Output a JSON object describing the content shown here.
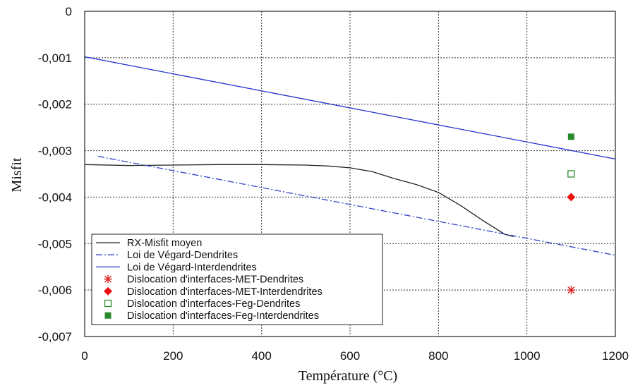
{
  "chart_data": {
    "type": "line",
    "title": "",
    "xlabel": "Température (°C)",
    "ylabel": "Misfit",
    "xlim": [
      0,
      1200
    ],
    "ylim": [
      -0.007,
      0
    ],
    "grid": {
      "x": true,
      "y": true,
      "style": "dotted"
    },
    "xticks": [
      0,
      200,
      400,
      600,
      800,
      1000,
      1200
    ],
    "xtick_labels": [
      "0",
      "200",
      "400",
      "600",
      "800",
      "1000",
      "1200"
    ],
    "yticks": [
      0,
      -0.001,
      -0.002,
      -0.003,
      -0.004,
      -0.005,
      -0.006,
      -0.007
    ],
    "ytick_labels": [
      "0",
      "-0,001",
      "-0,002",
      "-0,003",
      "-0,004",
      "-0,005",
      "-0,006",
      "-0,007"
    ],
    "legend_position": "bottom-left",
    "series": [
      {
        "name": "RX-Misfit moyen",
        "kind": "line",
        "color": "#222222",
        "dash": "solid",
        "x": [
          0,
          100,
          200,
          300,
          400,
          500,
          550,
          600,
          650,
          700,
          750,
          800,
          850,
          900,
          950,
          970
        ],
        "y": [
          -0.0033,
          -0.00332,
          -0.00331,
          -0.0033,
          -0.0033,
          -0.00331,
          -0.00333,
          -0.00337,
          -0.00345,
          -0.0036,
          -0.00373,
          -0.0039,
          -0.00418,
          -0.0045,
          -0.0048,
          -0.00485
        ]
      },
      {
        "name": "Loi de Végard-Dendrites",
        "kind": "line",
        "color": "#3344cc",
        "dash": "dashdot",
        "x": [
          30,
          1200
        ],
        "y": [
          -0.00312,
          -0.00525
        ]
      },
      {
        "name": "Loi de Végard-Interdendrites",
        "kind": "line",
        "color": "#2233cc",
        "dash": "solid",
        "x": [
          0,
          1200
        ],
        "y": [
          -0.00098,
          -0.00318
        ]
      },
      {
        "name": "Dislocation d'interfaces-MET-Dendrites",
        "kind": "marker",
        "marker": "asterisk",
        "color": "#dd2222",
        "x": [
          1100
        ],
        "y": [
          -0.006
        ]
      },
      {
        "name": "Dislocation d'interfaces-MET-Interdendrites",
        "kind": "marker",
        "marker": "diamond",
        "color": "#ee1111",
        "x": [
          1100
        ],
        "y": [
          -0.004
        ]
      },
      {
        "name": "Dislocation d'interfaces-Feg-Dendrites",
        "kind": "marker",
        "marker": "square-open",
        "color": "#2a8a2a",
        "x": [
          1100
        ],
        "y": [
          -0.0035
        ]
      },
      {
        "name": "Dislocation d'interfaces-Feg-Interdendrites",
        "kind": "marker",
        "marker": "square-filled",
        "color": "#2a8a2a",
        "x": [
          1100
        ],
        "y": [
          -0.0027
        ]
      }
    ]
  }
}
